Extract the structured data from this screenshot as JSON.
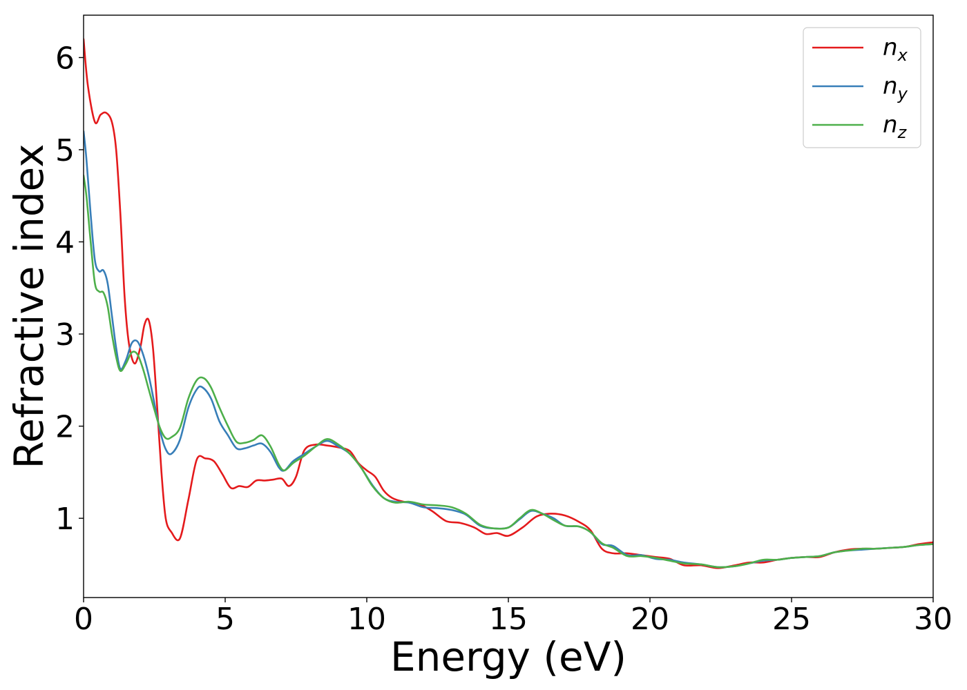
{
  "chart_data": {
    "type": "line",
    "title": "",
    "xlabel": "Energy (eV)",
    "ylabel": "Refractive index",
    "xlim": [
      0,
      30
    ],
    "ylim": [
      0.14,
      6.46
    ],
    "xticks": [
      0,
      5,
      10,
      15,
      20,
      25,
      30
    ],
    "xtick_labels": [
      "0",
      "5",
      "10",
      "15",
      "20",
      "25",
      "30"
    ],
    "yticks": [
      1,
      2,
      3,
      4,
      5,
      6
    ],
    "ytick_labels": [
      "1",
      "2",
      "3",
      "4",
      "5",
      "6"
    ],
    "grid": false,
    "legend_position": "top-right",
    "series": [
      {
        "name": "n_x",
        "legend_main": "n",
        "legend_sub": "x",
        "color": "#e41a1c",
        "x": [
          0,
          0.15,
          0.4,
          0.6,
          0.8,
          1.0,
          1.15,
          1.3,
          1.45,
          1.6,
          1.8,
          2.0,
          2.15,
          2.3,
          2.45,
          2.6,
          2.75,
          2.9,
          3.1,
          3.4,
          3.7,
          4.0,
          4.3,
          4.6,
          4.9,
          5.2,
          5.5,
          5.8,
          6.1,
          6.4,
          6.7,
          7.0,
          7.25,
          7.5,
          7.8,
          8.2,
          8.6,
          9.0,
          9.4,
          9.7,
          10.0,
          10.3,
          10.6,
          10.9,
          11.3,
          11.8,
          12.3,
          12.8,
          13.3,
          13.8,
          14.2,
          14.6,
          15.0,
          15.5,
          16.0,
          16.5,
          17.0,
          17.5,
          17.9,
          18.3,
          18.7,
          19.2,
          19.7,
          20.2,
          20.7,
          21.2,
          21.8,
          22.4,
          23.0,
          23.5,
          24.0,
          24.5,
          25.0,
          25.5,
          26.0,
          26.5,
          27.0,
          27.5,
          28.0,
          28.5,
          29.0,
          29.5,
          30.0
        ],
        "y": [
          6.2,
          5.7,
          5.3,
          5.38,
          5.4,
          5.3,
          5.0,
          4.3,
          3.4,
          2.9,
          2.68,
          2.85,
          3.1,
          3.15,
          2.85,
          2.2,
          1.5,
          1.0,
          0.85,
          0.78,
          1.2,
          1.64,
          1.65,
          1.62,
          1.48,
          1.33,
          1.35,
          1.34,
          1.41,
          1.41,
          1.42,
          1.43,
          1.35,
          1.45,
          1.74,
          1.8,
          1.79,
          1.77,
          1.73,
          1.6,
          1.52,
          1.45,
          1.3,
          1.22,
          1.18,
          1.16,
          1.08,
          0.97,
          0.95,
          0.9,
          0.83,
          0.84,
          0.81,
          0.9,
          1.02,
          1.05,
          1.03,
          0.96,
          0.87,
          0.67,
          0.62,
          0.62,
          0.6,
          0.58,
          0.56,
          0.49,
          0.49,
          0.46,
          0.49,
          0.52,
          0.52,
          0.55,
          0.57,
          0.58,
          0.58,
          0.63,
          0.66,
          0.67,
          0.67,
          0.68,
          0.69,
          0.72,
          0.74
        ]
      },
      {
        "name": "n_y",
        "legend_main": "n",
        "legend_sub": "y",
        "color": "#377eb8",
        "x": [
          0,
          0.1,
          0.25,
          0.4,
          0.55,
          0.7,
          0.85,
          1.0,
          1.15,
          1.3,
          1.5,
          1.7,
          1.9,
          2.1,
          2.3,
          2.5,
          2.7,
          2.9,
          3.1,
          3.4,
          3.7,
          4.0,
          4.2,
          4.5,
          4.8,
          5.1,
          5.4,
          5.7,
          6.0,
          6.3,
          6.6,
          6.9,
          7.1,
          7.4,
          7.8,
          8.2,
          8.6,
          9.0,
          9.4,
          9.8,
          10.2,
          10.6,
          11.0,
          11.5,
          12.0,
          12.5,
          13.0,
          13.5,
          14.0,
          14.5,
          15.0,
          15.4,
          15.8,
          16.2,
          16.6,
          17.0,
          17.5,
          17.9,
          18.3,
          18.7,
          19.2,
          19.7,
          20.2,
          20.7,
          21.2,
          21.8,
          22.4,
          23.0,
          23.5,
          24.0,
          24.5,
          25.0,
          25.5,
          26.0,
          26.5,
          27.0,
          27.5,
          28.0,
          28.5,
          29.0,
          29.5,
          30.0
        ],
        "y": [
          5.2,
          4.9,
          4.3,
          3.8,
          3.68,
          3.69,
          3.55,
          3.2,
          2.85,
          2.62,
          2.72,
          2.9,
          2.92,
          2.78,
          2.55,
          2.25,
          1.95,
          1.75,
          1.7,
          1.85,
          2.2,
          2.4,
          2.42,
          2.3,
          2.05,
          1.9,
          1.76,
          1.76,
          1.79,
          1.81,
          1.72,
          1.55,
          1.52,
          1.62,
          1.7,
          1.78,
          1.84,
          1.78,
          1.7,
          1.55,
          1.36,
          1.22,
          1.18,
          1.17,
          1.12,
          1.11,
          1.09,
          1.04,
          0.92,
          0.89,
          0.9,
          0.99,
          1.08,
          1.05,
          1.0,
          0.92,
          0.91,
          0.85,
          0.72,
          0.7,
          0.6,
          0.6,
          0.56,
          0.55,
          0.52,
          0.5,
          0.47,
          0.48,
          0.51,
          0.54,
          0.55,
          0.57,
          0.58,
          0.59,
          0.63,
          0.65,
          0.66,
          0.67,
          0.68,
          0.69,
          0.71,
          0.72
        ]
      },
      {
        "name": "n_z",
        "legend_main": "n",
        "legend_sub": "z",
        "color": "#4daf4a",
        "x": [
          0,
          0.1,
          0.25,
          0.4,
          0.55,
          0.7,
          0.85,
          1.0,
          1.15,
          1.3,
          1.5,
          1.7,
          1.9,
          2.1,
          2.3,
          2.5,
          2.7,
          2.9,
          3.1,
          3.4,
          3.7,
          4.0,
          4.25,
          4.5,
          4.8,
          5.1,
          5.4,
          5.7,
          6.0,
          6.3,
          6.6,
          6.9,
          7.1,
          7.4,
          7.8,
          8.2,
          8.6,
          9.0,
          9.4,
          9.8,
          10.2,
          10.6,
          11.0,
          11.5,
          12.0,
          12.5,
          13.0,
          13.5,
          14.0,
          14.5,
          15.0,
          15.4,
          15.8,
          16.2,
          16.6,
          17.0,
          17.5,
          17.9,
          18.3,
          18.7,
          19.2,
          19.7,
          20.2,
          20.7,
          21.2,
          21.8,
          22.4,
          23.0,
          23.5,
          24.0,
          24.5,
          25.0,
          25.5,
          26.0,
          26.5,
          27.0,
          27.5,
          28.0,
          28.5,
          29.0,
          29.5,
          30.0
        ],
        "y": [
          4.72,
          4.5,
          4.0,
          3.55,
          3.46,
          3.45,
          3.3,
          3.0,
          2.75,
          2.6,
          2.68,
          2.8,
          2.78,
          2.62,
          2.4,
          2.18,
          1.98,
          1.87,
          1.88,
          1.98,
          2.3,
          2.5,
          2.52,
          2.42,
          2.2,
          2.0,
          1.83,
          1.82,
          1.85,
          1.9,
          1.78,
          1.58,
          1.52,
          1.6,
          1.68,
          1.78,
          1.86,
          1.8,
          1.7,
          1.55,
          1.35,
          1.22,
          1.17,
          1.18,
          1.15,
          1.14,
          1.12,
          1.05,
          0.93,
          0.89,
          0.9,
          1.0,
          1.09,
          1.05,
          0.98,
          0.92,
          0.91,
          0.85,
          0.73,
          0.68,
          0.59,
          0.59,
          0.57,
          0.54,
          0.51,
          0.5,
          0.47,
          0.48,
          0.51,
          0.55,
          0.55,
          0.57,
          0.58,
          0.59,
          0.63,
          0.65,
          0.67,
          0.67,
          0.68,
          0.69,
          0.71,
          0.72
        ]
      }
    ]
  }
}
